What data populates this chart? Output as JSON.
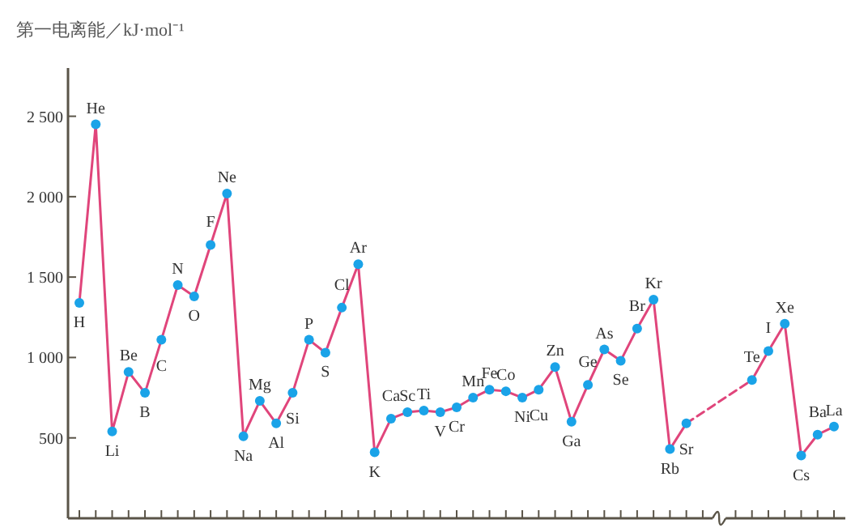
{
  "chart_data": {
    "type": "line",
    "ylabel": "第一电离能／kJ·mol⁻¹",
    "categories": [
      "H",
      "He",
      "Li",
      "Be",
      "B",
      "C",
      "N",
      "O",
      "F",
      "Ne",
      "Na",
      "Mg",
      "Al",
      "Si",
      "P",
      "S",
      "Cl",
      "Ar",
      "K",
      "Ca",
      "Sc",
      "Ti",
      "V",
      "Cr",
      "Mn",
      "Fe",
      "Co",
      "Ni",
      "Cu",
      "Zn",
      "Ga",
      "Ge",
      "As",
      "Se",
      "Br",
      "Kr",
      "Rb",
      "Sr",
      null,
      null,
      null,
      "Te",
      "I",
      "Xe",
      "Cs",
      "Ba",
      "La"
    ],
    "ylim": [
      0,
      2800
    ],
    "yticks": [
      500,
      {
        "value": 1000,
        "label": "1 000"
      },
      {
        "value": 1500,
        "label": "1 500"
      },
      {
        "value": 2000,
        "label": "2 000"
      },
      {
        "value": 2500,
        "label": "2 500"
      }
    ],
    "series": [
      {
        "color": "#e0457b",
        "line_style": "solid",
        "values": [
          1340,
          2450,
          540,
          910,
          780,
          1110,
          1450,
          1380,
          1700,
          2020,
          510,
          730,
          590,
          780,
          1110,
          1030,
          1310,
          1580,
          410,
          620,
          660,
          670,
          660,
          690,
          750,
          800,
          790,
          750,
          800,
          940,
          600,
          830,
          1050,
          980,
          1180,
          1360,
          430,
          590,
          null,
          null,
          null,
          null,
          null,
          null,
          null,
          null,
          null
        ]
      },
      {
        "color": "#e0457b",
        "line_style": "dashed",
        "values": [
          null,
          null,
          null,
          null,
          null,
          null,
          null,
          null,
          null,
          null,
          null,
          null,
          null,
          null,
          null,
          null,
          null,
          null,
          null,
          null,
          null,
          null,
          null,
          null,
          null,
          null,
          null,
          null,
          null,
          null,
          null,
          null,
          null,
          null,
          null,
          null,
          null,
          590,
          null,
          null,
          null,
          860,
          null,
          null,
          null,
          null,
          null
        ]
      },
      {
        "color": "#e0457b",
        "line_style": "solid",
        "values": [
          null,
          null,
          null,
          null,
          null,
          null,
          null,
          null,
          null,
          null,
          null,
          null,
          null,
          null,
          null,
          null,
          null,
          null,
          null,
          null,
          null,
          null,
          null,
          null,
          null,
          null,
          null,
          null,
          null,
          null,
          null,
          null,
          null,
          null,
          null,
          null,
          null,
          null,
          null,
          null,
          null,
          860,
          1040,
          1210,
          390,
          520,
          570
        ]
      },
      {
        "type": "scatter",
        "color": "#1aa3e8",
        "marker": "circle",
        "values": [
          1340,
          2450,
          540,
          910,
          780,
          1110,
          1450,
          1380,
          1700,
          2020,
          510,
          730,
          590,
          780,
          1110,
          1030,
          1310,
          1580,
          410,
          620,
          660,
          670,
          660,
          690,
          750,
          800,
          790,
          750,
          800,
          940,
          600,
          830,
          1050,
          980,
          1180,
          1360,
          430,
          590,
          null,
          null,
          null,
          860,
          1040,
          1210,
          390,
          520,
          570
        ]
      }
    ]
  }
}
